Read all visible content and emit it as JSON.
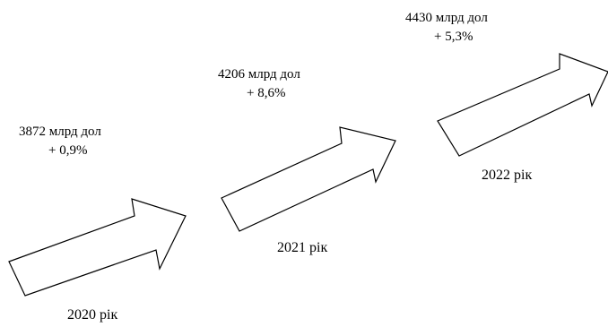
{
  "steps": [
    {
      "value": "3872 млрд дол",
      "change": "+ 0,9%",
      "year": "2020  рік"
    },
    {
      "value": "4206 млрд дол",
      "change": "+ 8,6%",
      "year": "2021  рік"
    },
    {
      "value": "4430 млрд дол",
      "change": "+ 5,3%",
      "year": "2022  рік"
    }
  ],
  "colors": {
    "stroke": "#000000",
    "fill": "#ffffff",
    "text": "#000000"
  }
}
